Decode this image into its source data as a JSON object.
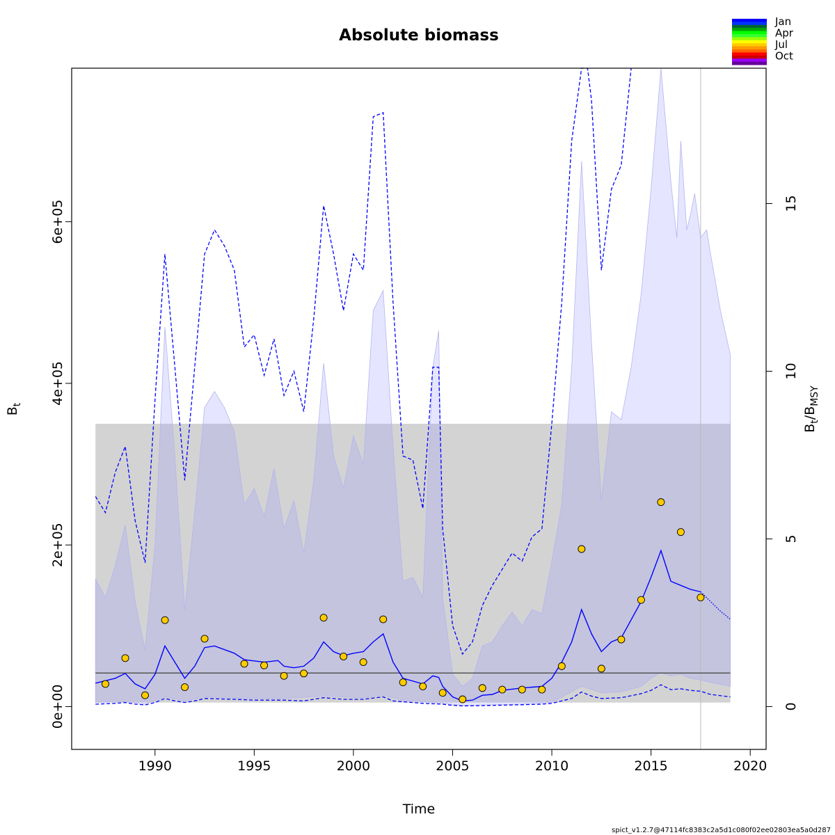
{
  "chart_data": {
    "type": "line",
    "title": "Absolute biomass",
    "xlabel": "Time",
    "ylabel": "B",
    "ylabel_sub": "t",
    "ylabel_right": "B",
    "ylabel_right_sub1": "t",
    "ylabel_right_mid": "/B",
    "ylabel_right_sub2": "MSY",
    "footer": "spict_v1.2.7@47114fc8383c2a5d1c080f02ee02803ea5a0d287",
    "xlim": [
      1985.8,
      2020.8
    ],
    "ylim": [
      -53000,
      790000
    ],
    "right_axis_max": 15,
    "bmsy": 41500,
    "grid": false,
    "xticks": [
      "1990",
      "1995",
      "2000",
      "2005",
      "2010",
      "2015",
      "2020"
    ],
    "yticks": [
      "0e+00",
      "2e+05",
      "4e+05",
      "6e+05"
    ],
    "yticks_right": [
      "0",
      "5",
      "10",
      "15"
    ],
    "legend": {
      "position": "top-right",
      "labels": [
        "Jan",
        "Apr",
        "Jul",
        "Oct"
      ],
      "colors": [
        "#0000ff",
        "#0033ff",
        "#006633",
        "#00aa00",
        "#00ff00",
        "#33ff33",
        "#99ff00",
        "#ffff00",
        "#ffcc00",
        "#ff9900",
        "#ff6600",
        "#ff0000",
        "#cc0000",
        "#9900ff",
        "#660099"
      ]
    },
    "colors": {
      "estimate": "#0000ff",
      "ci_band": "#e6e6ff",
      "ci_band_edge": "#b4b4f0",
      "bmsy_band": "#d3d3d3",
      "bmsy_line": "#555555",
      "points": "#ffcc00",
      "overlap": "#bbbbd8"
    },
    "bmsy_ci": [
      5000,
      350000
    ],
    "bmsy_ci_x": [
      1987.0,
      2019.0
    ],
    "forecast_start": 2017.5,
    "observations": [
      [
        1987.5,
        28000
      ],
      [
        1988.5,
        60000
      ],
      [
        1989.5,
        14000
      ],
      [
        1990.5,
        107000
      ],
      [
        1991.5,
        24000
      ],
      [
        1992.5,
        84000
      ],
      [
        1994.5,
        53000
      ],
      [
        1995.5,
        51000
      ],
      [
        1996.5,
        38000
      ],
      [
        1997.5,
        41000
      ],
      [
        1998.5,
        110000
      ],
      [
        1999.5,
        62000
      ],
      [
        2000.5,
        55000
      ],
      [
        2001.5,
        108000
      ],
      [
        2002.5,
        30000
      ],
      [
        2003.5,
        25000
      ],
      [
        2004.5,
        17000
      ],
      [
        2005.5,
        9000
      ],
      [
        2006.5,
        23000
      ],
      [
        2007.5,
        21000
      ],
      [
        2008.5,
        21000
      ],
      [
        2009.5,
        21000
      ],
      [
        2010.5,
        50000
      ],
      [
        2011.5,
        195000
      ],
      [
        2012.5,
        47000
      ],
      [
        2013.5,
        83000
      ],
      [
        2014.5,
        132000
      ],
      [
        2015.5,
        253000
      ],
      [
        2016.5,
        216000
      ],
      [
        2017.5,
        135000
      ]
    ],
    "estimate": [
      [
        1987.0,
        29000
      ],
      [
        1988.0,
        35000
      ],
      [
        1988.5,
        41000
      ],
      [
        1989.0,
        28000
      ],
      [
        1989.5,
        22000
      ],
      [
        1990.0,
        40000
      ],
      [
        1990.5,
        75000
      ],
      [
        1991.0,
        55000
      ],
      [
        1991.5,
        35000
      ],
      [
        1992.0,
        50000
      ],
      [
        1992.5,
        73000
      ],
      [
        1993.0,
        75000
      ],
      [
        1994.0,
        66000
      ],
      [
        1994.5,
        58000
      ],
      [
        1995.5,
        55000
      ],
      [
        1996.2,
        57000
      ],
      [
        1996.5,
        50000
      ],
      [
        1997.0,
        48000
      ],
      [
        1997.5,
        50000
      ],
      [
        1998.0,
        60000
      ],
      [
        1998.5,
        80000
      ],
      [
        1999.0,
        68000
      ],
      [
        1999.5,
        63000
      ],
      [
        2000.0,
        66000
      ],
      [
        2000.5,
        68000
      ],
      [
        2001.0,
        80000
      ],
      [
        2001.5,
        90000
      ],
      [
        2002.0,
        55000
      ],
      [
        2002.5,
        35000
      ],
      [
        2003.5,
        28000
      ],
      [
        2004.0,
        38000
      ],
      [
        2004.3,
        36000
      ],
      [
        2004.5,
        25000
      ],
      [
        2005.0,
        12000
      ],
      [
        2005.5,
        7000
      ],
      [
        2006.0,
        8000
      ],
      [
        2006.5,
        14000
      ],
      [
        2007.0,
        15000
      ],
      [
        2007.5,
        20000
      ],
      [
        2008.5,
        23000
      ],
      [
        2009.5,
        25000
      ],
      [
        2010.0,
        35000
      ],
      [
        2010.5,
        55000
      ],
      [
        2011.0,
        80000
      ],
      [
        2011.5,
        120000
      ],
      [
        2012.0,
        90000
      ],
      [
        2012.5,
        68000
      ],
      [
        2013.0,
        80000
      ],
      [
        2013.5,
        85000
      ],
      [
        2014.5,
        130000
      ],
      [
        2015.0,
        160000
      ],
      [
        2015.5,
        193000
      ],
      [
        2016.0,
        155000
      ],
      [
        2016.5,
        150000
      ],
      [
        2017.0,
        145000
      ],
      [
        2017.5,
        142000
      ]
    ],
    "forecast": [
      [
        2017.5,
        142000
      ],
      [
        2018.0,
        130000
      ],
      [
        2018.5,
        118000
      ],
      [
        2019.0,
        108000
      ]
    ],
    "upper_ci": [
      [
        1987.0,
        260000
      ],
      [
        1987.5,
        240000
      ],
      [
        1988.0,
        290000
      ],
      [
        1988.5,
        322000
      ],
      [
        1989.0,
        230000
      ],
      [
        1989.5,
        178000
      ],
      [
        1990.0,
        380000
      ],
      [
        1990.5,
        560000
      ],
      [
        1991.0,
        420000
      ],
      [
        1991.5,
        280000
      ],
      [
        1992.0,
        420000
      ],
      [
        1992.5,
        560000
      ],
      [
        1993.0,
        590000
      ],
      [
        1993.5,
        570000
      ],
      [
        1994.0,
        540000
      ],
      [
        1994.5,
        445000
      ],
      [
        1995.0,
        460000
      ],
      [
        1995.5,
        410000
      ],
      [
        1996.0,
        455000
      ],
      [
        1996.5,
        385000
      ],
      [
        1997.0,
        415000
      ],
      [
        1997.5,
        365000
      ],
      [
        1998.0,
        480000
      ],
      [
        1998.5,
        620000
      ],
      [
        1999.0,
        560000
      ],
      [
        1999.5,
        490000
      ],
      [
        2000.0,
        560000
      ],
      [
        2000.5,
        540000
      ],
      [
        2001.0,
        730000
      ],
      [
        2001.5,
        735000
      ],
      [
        2002.0,
        500000
      ],
      [
        2002.5,
        310000
      ],
      [
        2003.0,
        305000
      ],
      [
        2003.5,
        245000
      ],
      [
        2004.0,
        420000
      ],
      [
        2004.3,
        420000
      ],
      [
        2004.5,
        220000
      ],
      [
        2005.0,
        100000
      ],
      [
        2005.5,
        65000
      ],
      [
        2006.0,
        80000
      ],
      [
        2006.5,
        125000
      ],
      [
        2007.0,
        150000
      ],
      [
        2007.5,
        170000
      ],
      [
        2008.0,
        190000
      ],
      [
        2008.5,
        180000
      ],
      [
        2009.0,
        210000
      ],
      [
        2009.5,
        220000
      ],
      [
        2010.0,
        350000
      ],
      [
        2010.5,
        500000
      ],
      [
        2011.0,
        700000
      ],
      [
        2011.5,
        790000
      ],
      [
        2011.8,
        790000
      ],
      [
        2012.0,
        750000
      ],
      [
        2012.5,
        540000
      ],
      [
        2013.0,
        640000
      ],
      [
        2013.5,
        670000
      ],
      [
        2014.0,
        790000
      ]
    ],
    "lower_ci": [
      [
        1987.0,
        3000
      ],
      [
        1988.0,
        4000
      ],
      [
        1988.5,
        5000
      ],
      [
        1989.0,
        3000
      ],
      [
        1989.5,
        2000
      ],
      [
        1990.0,
        5000
      ],
      [
        1990.5,
        10000
      ],
      [
        1991.0,
        7000
      ],
      [
        1991.5,
        5000
      ],
      [
        1992.0,
        7000
      ],
      [
        1992.5,
        10000
      ],
      [
        1994.0,
        9000
      ],
      [
        1995.0,
        8000
      ],
      [
        1996.5,
        8000
      ],
      [
        1997.5,
        7000
      ],
      [
        1998.5,
        11000
      ],
      [
        1999.5,
        9000
      ],
      [
        2000.5,
        9000
      ],
      [
        2001.5,
        12000
      ],
      [
        2002.0,
        7000
      ],
      [
        2003.5,
        4000
      ],
      [
        2004.5,
        3000
      ],
      [
        2005.0,
        1500
      ],
      [
        2005.5,
        800
      ],
      [
        2006.5,
        1200
      ],
      [
        2008.0,
        2000
      ],
      [
        2009.5,
        3000
      ],
      [
        2010.0,
        4000
      ],
      [
        2011.0,
        10000
      ],
      [
        2011.5,
        18000
      ],
      [
        2012.0,
        13000
      ],
      [
        2012.5,
        10000
      ],
      [
        2013.5,
        11000
      ],
      [
        2014.5,
        16000
      ],
      [
        2015.0,
        20000
      ],
      [
        2015.5,
        27000
      ],
      [
        2016.0,
        21000
      ],
      [
        2016.5,
        22000
      ],
      [
        2017.0,
        20000
      ],
      [
        2017.5,
        19000
      ],
      [
        2018.0,
        15000
      ],
      [
        2019.0,
        12000
      ]
    ],
    "ci_band_upper": [
      [
        1987.0,
        158000
      ],
      [
        1987.5,
        135000
      ],
      [
        1988.0,
        175000
      ],
      [
        1988.5,
        225000
      ],
      [
        1989.0,
        130000
      ],
      [
        1989.5,
        70000
      ],
      [
        1990.0,
        200000
      ],
      [
        1990.5,
        470000
      ],
      [
        1991.0,
        310000
      ],
      [
        1991.5,
        120000
      ],
      [
        1992.0,
        240000
      ],
      [
        1992.5,
        370000
      ],
      [
        1993.0,
        390000
      ],
      [
        1993.5,
        370000
      ],
      [
        1994.0,
        340000
      ],
      [
        1994.5,
        250000
      ],
      [
        1995.0,
        270000
      ],
      [
        1995.5,
        235000
      ],
      [
        1996.0,
        295000
      ],
      [
        1996.5,
        220000
      ],
      [
        1997.0,
        255000
      ],
      [
        1997.5,
        190000
      ],
      [
        1998.0,
        280000
      ],
      [
        1998.5,
        425000
      ],
      [
        1999.0,
        310000
      ],
      [
        1999.5,
        270000
      ],
      [
        2000.0,
        335000
      ],
      [
        2000.5,
        300000
      ],
      [
        2001.0,
        490000
      ],
      [
        2001.5,
        515000
      ],
      [
        2002.0,
        320000
      ],
      [
        2002.5,
        155000
      ],
      [
        2003.0,
        160000
      ],
      [
        2003.5,
        135000
      ],
      [
        2004.0,
        420000
      ],
      [
        2004.3,
        465000
      ],
      [
        2004.5,
        135000
      ],
      [
        2005.0,
        40000
      ],
      [
        2005.5,
        25000
      ],
      [
        2006.0,
        35000
      ],
      [
        2006.5,
        75000
      ],
      [
        2007.0,
        80000
      ],
      [
        2007.5,
        100000
      ],
      [
        2008.0,
        117000
      ],
      [
        2008.5,
        100000
      ],
      [
        2009.0,
        120000
      ],
      [
        2009.5,
        115000
      ],
      [
        2010.0,
        180000
      ],
      [
        2010.5,
        250000
      ],
      [
        2011.0,
        420000
      ],
      [
        2011.5,
        675000
      ],
      [
        2012.0,
        450000
      ],
      [
        2012.5,
        255000
      ],
      [
        2013.0,
        365000
      ],
      [
        2013.5,
        355000
      ],
      [
        2014.0,
        420000
      ],
      [
        2014.5,
        510000
      ],
      [
        2015.0,
        640000
      ],
      [
        2015.5,
        790000
      ],
      [
        2016.0,
        650000
      ],
      [
        2016.3,
        580000
      ],
      [
        2016.5,
        700000
      ],
      [
        2016.8,
        590000
      ],
      [
        2017.0,
        610000
      ],
      [
        2017.2,
        635000
      ],
      [
        2017.5,
        580000
      ],
      [
        2017.8,
        590000
      ],
      [
        2018.0,
        560000
      ],
      [
        2018.5,
        490000
      ],
      [
        2019.0,
        435000
      ]
    ],
    "ci_band_lower": [
      [
        1987.0,
        5000
      ],
      [
        1988.5,
        6000
      ],
      [
        1989.5,
        3000
      ],
      [
        1990.5,
        12000
      ],
      [
        1991.5,
        7000
      ],
      [
        1992.5,
        12000
      ],
      [
        1994.5,
        10000
      ],
      [
        1996.5,
        10000
      ],
      [
        1998.5,
        13000
      ],
      [
        2000.5,
        11000
      ],
      [
        2001.5,
        14000
      ],
      [
        2002.5,
        8000
      ],
      [
        2004.5,
        4000
      ],
      [
        2005.5,
        1500
      ],
      [
        2006.5,
        2000
      ],
      [
        2008.5,
        3000
      ],
      [
        2010.0,
        5000
      ],
      [
        2011.5,
        25000
      ],
      [
        2012.5,
        17000
      ],
      [
        2013.5,
        18000
      ],
      [
        2014.5,
        25000
      ],
      [
        2015.0,
        35000
      ],
      [
        2015.5,
        42000
      ],
      [
        2016.0,
        38000
      ],
      [
        2016.5,
        40000
      ],
      [
        2017.0,
        35000
      ],
      [
        2017.5,
        33000
      ],
      [
        2018.0,
        30000
      ],
      [
        2019.0,
        25000
      ]
    ]
  }
}
